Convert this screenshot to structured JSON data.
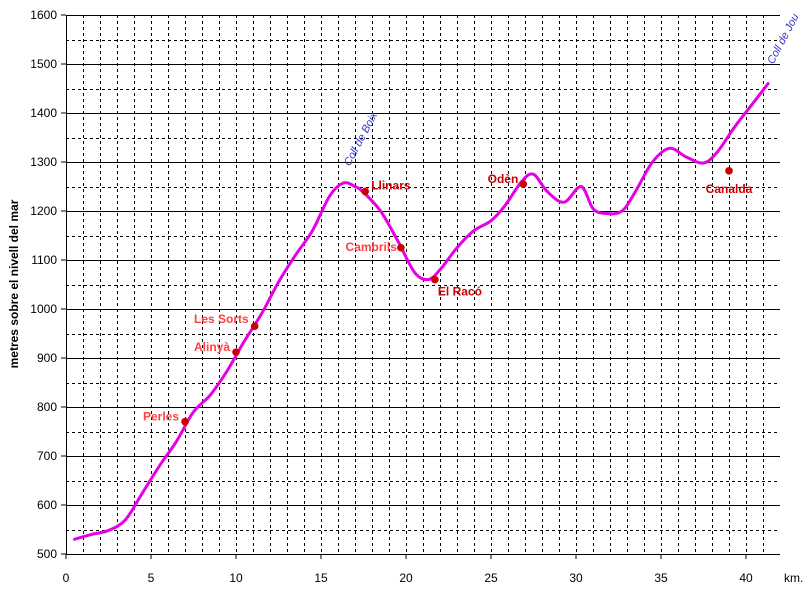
{
  "chart_data": {
    "type": "line",
    "ylabel": "metres sobre el nivell del mar",
    "xlabel": "km.",
    "xlim": [
      0,
      42
    ],
    "ylim": [
      500,
      1600
    ],
    "x_ticks": [
      0,
      5,
      10,
      15,
      20,
      25,
      30,
      35,
      40
    ],
    "y_ticks": [
      500,
      600,
      700,
      800,
      900,
      1000,
      1100,
      1200,
      1300,
      1400,
      1500,
      1600
    ],
    "x_minor_step": 1,
    "y_minor_step": 50,
    "grid": true,
    "line_color": "#e600e6",
    "town_color": "#cc0000",
    "town_label_color": "#ff4040",
    "pass_color": "#3333cc",
    "profile": {
      "x": [
        0.5,
        1.5,
        2.5,
        3.5,
        4.5,
        5.5,
        6.5,
        7.5,
        8.5,
        9.5,
        10.5,
        11.5,
        12.5,
        13.5,
        14.5,
        15.5,
        16.3,
        17.0,
        17.5,
        18.5,
        19.5,
        20.5,
        21.3,
        22.0,
        23.0,
        24.0,
        25.0,
        25.8,
        26.8,
        27.5,
        28.3,
        29.3,
        30.3,
        31.0,
        31.7,
        32.7,
        33.5,
        34.5,
        35.5,
        36.5,
        37.5,
        38.3,
        39.3,
        40.3,
        41.3
      ],
      "y": [
        530,
        540,
        548,
        570,
        625,
        680,
        730,
        790,
        825,
        875,
        935,
        990,
        1055,
        1110,
        1160,
        1230,
        1257,
        1250,
        1238,
        1200,
        1140,
        1075,
        1060,
        1080,
        1125,
        1160,
        1180,
        1210,
        1260,
        1275,
        1240,
        1218,
        1250,
        1205,
        1195,
        1200,
        1240,
        1300,
        1328,
        1310,
        1298,
        1320,
        1370,
        1415,
        1460
      ]
    },
    "towns": [
      {
        "name": "Perles",
        "x": 7.0,
        "y": 770,
        "anchor": "end",
        "dx": -6,
        "dy": -1,
        "color": "light"
      },
      {
        "name": "Alinyà",
        "x": 10.0,
        "y": 912,
        "anchor": "end",
        "dx": -6,
        "dy": -1,
        "color": "light"
      },
      {
        "name": "Les Sorts",
        "x": 11.1,
        "y": 965,
        "anchor": "end",
        "dx": -6,
        "dy": -3,
        "color": "light"
      },
      {
        "name": "Llinars",
        "x": 17.6,
        "y": 1240,
        "anchor": "start",
        "dx": 6,
        "dy": -2,
        "color": "dark"
      },
      {
        "name": "Cambrils",
        "x": 19.7,
        "y": 1125,
        "anchor": "end",
        "dx": -4,
        "dy": 3,
        "color": "light"
      },
      {
        "name": "El Racó",
        "x": 21.7,
        "y": 1060,
        "anchor": "start",
        "dx": 3,
        "dy": 16,
        "color": "dark"
      },
      {
        "name": "Odèn",
        "x": 26.9,
        "y": 1255,
        "anchor": "end",
        "dx": -5,
        "dy": -1,
        "color": "dark"
      },
      {
        "name": "Canalda",
        "x": 39.0,
        "y": 1282,
        "anchor": "middle",
        "dx": 0,
        "dy": 22,
        "color": "dark"
      }
    ],
    "passes": [
      {
        "name": "Coll de Boix",
        "x": 16.7,
        "y": 1262
      },
      {
        "name": "Coll de Jou",
        "x": 41.6,
        "y": 1470
      }
    ]
  }
}
